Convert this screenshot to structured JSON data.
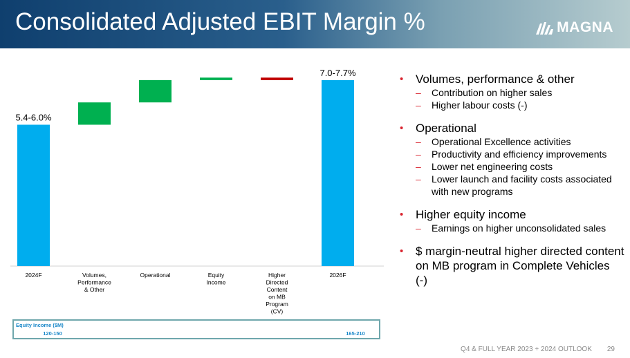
{
  "header": {
    "title": "Consolidated Adjusted EBIT Margin %",
    "logo_text": "MAGNA"
  },
  "chart_data": {
    "type": "bar",
    "subtype": "waterfall",
    "categories": [
      "2024F",
      "Volumes,\nPerformance\n& Other",
      "Operational",
      "Equity\nIncome",
      "Higher\nDirected\nContent\non MB\nProgram\n(CV)",
      "2026F"
    ],
    "bars": [
      {
        "kind": "total",
        "value": 5.7,
        "label": "5.4-6.0%",
        "color": "#00adee"
      },
      {
        "kind": "delta",
        "start": 5.7,
        "end": 6.6,
        "color": "#00b050"
      },
      {
        "kind": "delta",
        "start": 6.6,
        "end": 7.5,
        "color": "#00b050"
      },
      {
        "kind": "delta",
        "start": 7.5,
        "end": 7.6,
        "color": "#00b050"
      },
      {
        "kind": "delta",
        "start": 7.6,
        "end": 7.5,
        "color": "#c00000"
      },
      {
        "kind": "total",
        "value": 7.5,
        "label": "7.0-7.7%",
        "color": "#00adee"
      }
    ],
    "ylim": [
      0,
      8.5
    ],
    "grid": false,
    "legend": "none"
  },
  "equity_income": {
    "title": "Equity Income ($M)",
    "values": [
      "120-150",
      "",
      "",
      "",
      "",
      "165-210"
    ]
  },
  "bullets": [
    {
      "text": "Volumes, performance & other",
      "sub": [
        "Contribution on higher sales",
        "Higher labour costs (-)"
      ]
    },
    {
      "text": "Operational",
      "sub": [
        "Operational Excellence activities",
        "Productivity and efficiency improvements",
        "Lower net engineering costs",
        "Lower launch and facility costs associated with new programs"
      ]
    },
    {
      "text": "Higher equity income",
      "sub": [
        "Earnings on higher unconsolidated sales"
      ]
    },
    {
      "text": "$ margin-neutral higher directed content on MB program in Complete Vehicles (-)",
      "sub": []
    }
  ],
  "footer": {
    "text": "Q4 & FULL YEAR 2023 + 2024 OUTLOOK",
    "page": "29"
  },
  "colors": {
    "accent_red": "#d9232e",
    "bar_blue": "#00adee",
    "increase_green": "#00b050",
    "decrease_red": "#c00000"
  }
}
